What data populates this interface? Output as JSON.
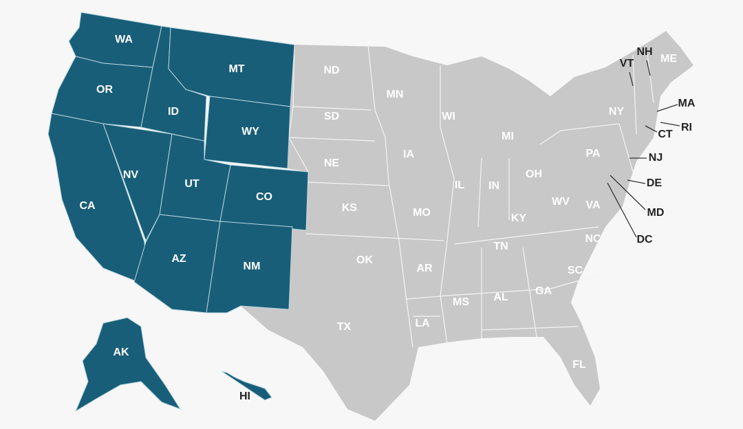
{
  "colors": {
    "highlighted": "#195e78",
    "default": "#c8c8c8",
    "background": "#f7f7f7",
    "border": "#f4f4f4"
  },
  "highlighted_states": [
    "WA",
    "OR",
    "CA",
    "NV",
    "ID",
    "MT",
    "WY",
    "UT",
    "CO",
    "AZ",
    "NM",
    "AK",
    "HI"
  ],
  "labels": {
    "WA": "WA",
    "OR": "OR",
    "CA": "CA",
    "NV": "NV",
    "ID": "ID",
    "MT": "MT",
    "WY": "WY",
    "UT": "UT",
    "CO": "CO",
    "AZ": "AZ",
    "NM": "NM",
    "AK": "AK",
    "HI": "HI",
    "ND": "ND",
    "SD": "SD",
    "NE": "NE",
    "KS": "KS",
    "OK": "OK",
    "TX": "TX",
    "MN": "MN",
    "IA": "IA",
    "MO": "MO",
    "AR": "AR",
    "LA": "LA",
    "WI": "WI",
    "IL": "IL",
    "MI": "MI",
    "IN": "IN",
    "OH": "OH",
    "KY": "KY",
    "TN": "TN",
    "MS": "MS",
    "AL": "AL",
    "GA": "GA",
    "FL": "FL",
    "SC": "SC",
    "NC": "NC",
    "VA": "VA",
    "WV": "WV",
    "PA": "PA",
    "NY": "NY",
    "ME": "ME",
    "VT": "VT",
    "NH": "NH",
    "MA": "MA",
    "RI": "RI",
    "CT": "CT",
    "NJ": "NJ",
    "DE": "DE",
    "MD": "MD",
    "DC": "DC"
  }
}
